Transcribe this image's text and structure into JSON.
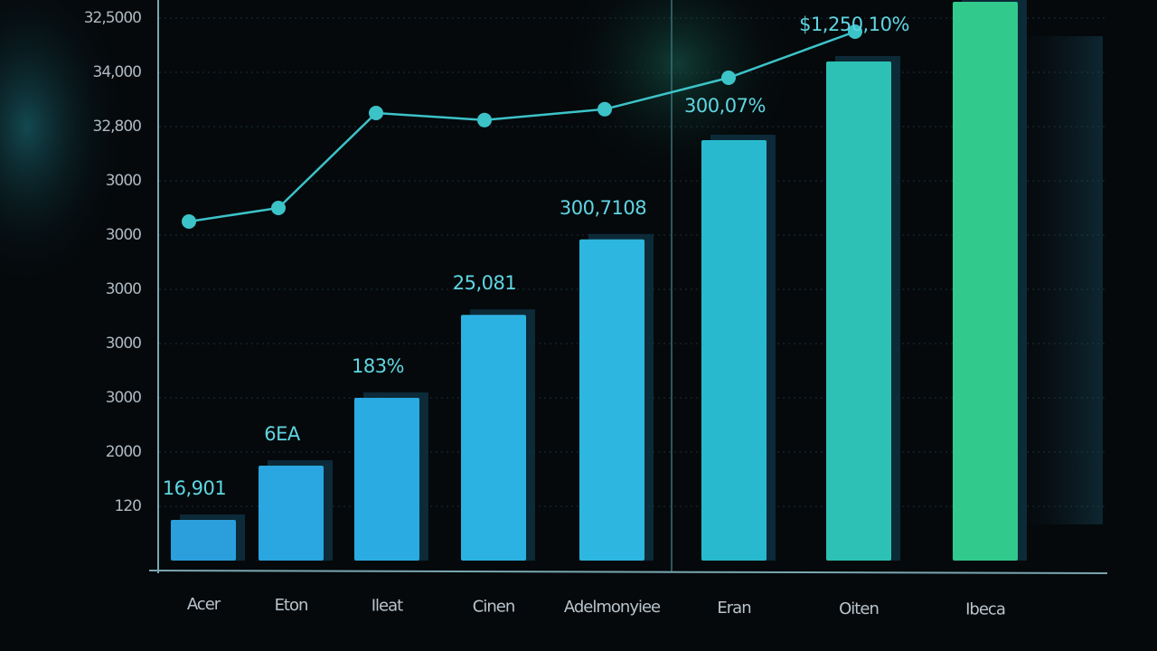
{
  "chart_data": {
    "type": "bar",
    "categories": [
      "Acer",
      "Eton",
      "Ileat",
      "Cinen",
      "Adelmonyiee",
      "Eran",
      "Oiten",
      "Ibeca"
    ],
    "values": [
      0.75,
      1.75,
      3.0,
      4.53,
      5.92,
      7.75,
      9.2,
      10.3
    ],
    "colors": [
      "#2b9fdc",
      "#2aa6e0",
      "#2aace2",
      "#2cb2e2",
      "#2db6df",
      "#29b9cf",
      "#2cc1b4",
      "#32c98c"
    ],
    "annotations": [
      "16,901",
      "6EA",
      "183%",
      "25,081",
      "300,7108",
      "300,07%",
      "$1,250,10%",
      null
    ],
    "line": {
      "color": "#3cc3c8",
      "values": [
        6.25,
        6.5,
        8.25,
        8.12,
        8.32,
        8.9,
        9.75,
        null
      ]
    },
    "ylim": [
      0,
      10.3
    ],
    "yticks": [
      {
        "value": 1,
        "label": "120"
      },
      {
        "value": 2,
        "label": "2000"
      },
      {
        "value": 3,
        "label": "3000"
      },
      {
        "value": 4,
        "label": "3000"
      },
      {
        "value": 5,
        "label": "3000"
      },
      {
        "value": 6,
        "label": "3000"
      },
      {
        "value": 7,
        "label": "3000"
      },
      {
        "value": 8,
        "label": "32,800"
      },
      {
        "value": 9,
        "label": "34,000"
      },
      {
        "value": 10,
        "label": "32,5000"
      }
    ],
    "grid": true
  }
}
